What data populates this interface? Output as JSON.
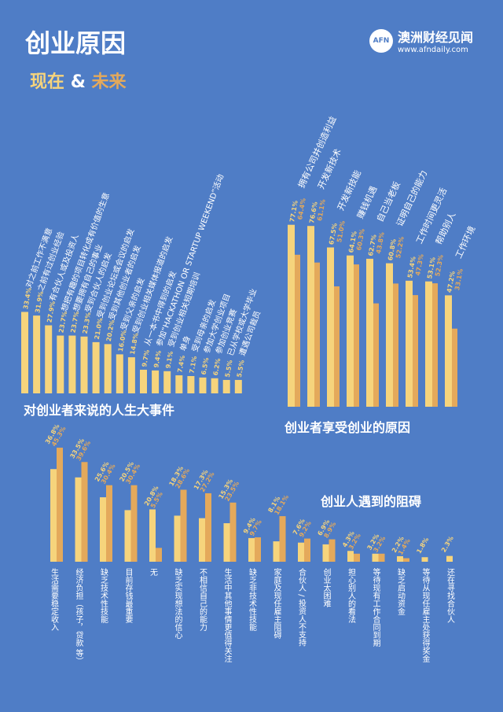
{
  "header": {
    "title": "创业原因",
    "now": "现在",
    "amp": "&",
    "future": "未来"
  },
  "logo": {
    "mark": "AFN",
    "name": "澳洲财经见闻",
    "url": "www.afndaily.com"
  },
  "colors": {
    "background": "#4f7dc6",
    "now": "#f6d47c",
    "future": "#e4a95b"
  },
  "chart_data": [
    {
      "type": "bar",
      "title": "对创业者来说的人生大事件",
      "categories": [
        "对之前工作不满意",
        "之前有过创业经验",
        "有合伙人或及投资人",
        "想把有趣的项目转化成有价值的生意",
        "想要拥有自己的事业",
        "受到合伙人的启发",
        "受到创业论坛或会议的启发",
        "受到其他创业者的启发",
        "受到父亲的启发",
        "受到创业相关媒体报道的启发",
        "从一本书中得到的启发",
        "参加“HACKATHON OR STARTUP WEEKEND”活动",
        "受到创业相关短期培训",
        "单身",
        "受到母亲的启发",
        "参加大学创业项目",
        "参加创业竞赛",
        "已从学校或大学毕业",
        "遭遇公司裁员"
      ],
      "values": [
        33.4,
        31.9,
        27.9,
        23.7,
        23.7,
        23.3,
        21.0,
        20.2,
        16.0,
        14.8,
        9.7,
        9.4,
        9.1,
        7.4,
        7.1,
        6.5,
        6.2,
        5.5,
        5.5
      ],
      "value_labels": [
        "33.4%",
        "31.9%",
        "27.9%",
        "23.7%",
        "23.7%",
        "23.3%",
        "21.0%",
        "20.2%",
        "16.0%",
        "14.8%",
        "9.7%",
        "9.4%",
        "9.1%",
        "7.4%",
        "7.1%",
        "6.5%",
        "6.2%",
        "5.5%",
        "5.5%"
      ]
    },
    {
      "type": "bar",
      "title": "创业者享受创业的原因",
      "categories": [
        "拥有公司并创造利益",
        "开发新技术",
        "开发新技能",
        "赚钱机遇",
        "自己当老板",
        "证明自己的能力",
        "工作时间更灵活",
        "帮助别人",
        "工作环境"
      ],
      "series": [
        {
          "values": [
            77.1,
            76.6,
            67.5,
            64.1,
            62.7,
            60.8,
            53.4,
            53.1,
            47.2
          ],
          "labels": [
            "77.1%",
            "76.6%",
            "67.5%",
            "64.1%",
            "62.7%",
            "60.8%",
            "53.4%",
            "53.1%",
            "47.2%"
          ]
        },
        {
          "values": [
            64.4,
            61.1,
            51.0,
            60.3,
            43.8,
            52.2,
            47.3,
            52.3,
            33.1
          ],
          "labels": [
            "64.4%",
            "61.1%",
            "51.0%",
            "60.3%",
            "43.8%",
            "52.2%",
            "47.3%",
            "52.3%",
            "33.1%"
          ]
        }
      ]
    },
    {
      "type": "bar",
      "title": "创业人遇到的阻碍",
      "categories": [
        "生活需要稳定收入",
        "经济负担（孩子，贷款 等）",
        "缺乏技术性技能",
        "目前存钱最重要",
        "无",
        "缺乏实现想法的信心",
        "不相信自己的能力",
        "生活中其他事情更值得关注",
        "缺乏非技术性技能",
        "家庭及现任雇主阻碍",
        "合伙人 / 投资人不支持",
        "创业太困难",
        "担心别人的看法",
        "等待现有工作合同到期",
        "缺乏启动资金",
        "等待从现任雇主处获得奖金",
        "还在寻找合伙人"
      ],
      "series": [
        {
          "values": [
            36.8,
            33.5,
            25.6,
            20.5,
            20.8,
            18.3,
            17.3,
            15.3,
            9.4,
            8.1,
            7.6,
            6.9,
            4.3,
            3.2,
            2.2,
            1.8,
            2.3
          ],
          "labels": [
            "36.8%",
            "33.5%",
            "25.6%",
            "20.5%",
            "20.8%",
            "18.3%",
            "17.3%",
            "15.3%",
            "9.4%",
            "8.1%",
            "7.6%",
            "6.9%",
            "4.3%",
            "3.2%",
            "2.2%",
            "1.8%",
            "2.3%"
          ]
        },
        {
          "values": [
            45.3,
            39.6,
            30.4,
            30.4,
            5.5,
            28.6,
            27.2,
            23.5,
            9.7,
            18.1,
            9.2,
            8.9,
            3.2,
            3.2,
            1.4,
            null,
            null
          ],
          "labels": [
            "45.3%",
            "39.6%",
            "30.4%",
            "30.4%",
            "5.5%",
            "28.6%",
            "27.2%",
            "23.5%",
            "9.7%",
            "18.1%",
            "9.2%",
            "8.9%",
            "3.2%",
            "3.2%",
            "1.4%",
            "",
            ""
          ]
        }
      ]
    }
  ]
}
